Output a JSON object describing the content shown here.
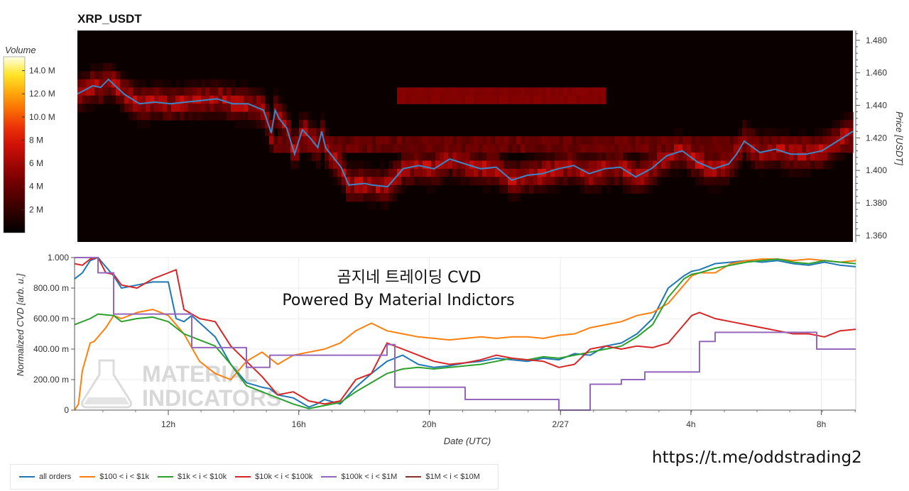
{
  "chart_data": [
    {
      "type": "heatmap",
      "title": "XRP_USDT",
      "ylabel": "Price [USDT]",
      "ylim": [
        1.356,
        1.486
      ],
      "y_ticks": [
        "1.480",
        "1.460",
        "1.440",
        "1.420",
        "1.400",
        "1.380",
        "1.360"
      ],
      "colorbar": {
        "label": "Volume",
        "ticks": [
          "14.0 M",
          "12.0 M",
          "10.0 M",
          "8 M",
          "6 M",
          "4 M",
          "2 M"
        ],
        "range": [
          0,
          15.2
        ]
      },
      "price_series": {
        "name": "price",
        "color": "#3d86c6",
        "x": [
          0,
          0.02,
          0.03,
          0.04,
          0.06,
          0.08,
          0.1,
          0.12,
          0.14,
          0.16,
          0.18,
          0.2,
          0.22,
          0.24,
          0.25,
          0.255,
          0.26,
          0.27,
          0.28,
          0.29,
          0.3,
          0.31,
          0.315,
          0.32,
          0.34,
          0.35,
          0.37,
          0.38,
          0.4,
          0.42,
          0.44,
          0.46,
          0.48,
          0.5,
          0.52,
          0.54,
          0.56,
          0.58,
          0.6,
          0.62,
          0.64,
          0.66,
          0.68,
          0.7,
          0.72,
          0.74,
          0.76,
          0.78,
          0.8,
          0.82,
          0.84,
          0.85,
          0.86,
          0.88,
          0.9,
          0.92,
          0.94,
          0.96,
          0.98,
          1.0
        ],
        "y": [
          1.447,
          1.452,
          1.451,
          1.456,
          1.447,
          1.441,
          1.442,
          1.441,
          1.442,
          1.443,
          1.444,
          1.441,
          1.441,
          1.437,
          1.423,
          1.437,
          1.432,
          1.426,
          1.41,
          1.425,
          1.42,
          1.414,
          1.424,
          1.414,
          1.402,
          1.391,
          1.392,
          1.391,
          1.39,
          1.401,
          1.403,
          1.401,
          1.407,
          1.404,
          1.401,
          1.402,
          1.394,
          1.397,
          1.398,
          1.401,
          1.403,
          1.398,
          1.401,
          1.402,
          1.396,
          1.401,
          1.409,
          1.412,
          1.405,
          1.401,
          1.404,
          1.41,
          1.418,
          1.411,
          1.413,
          1.41,
          1.41,
          1.412,
          1.418,
          1.424
        ]
      }
    },
    {
      "type": "line",
      "text_overlay": [
        "곰지네 트레이딩 CVD",
        "Powered By Material Indictors"
      ],
      "watermark": [
        "MATERIAL",
        "INDICATORS"
      ],
      "xlabel": "Date (UTC)",
      "ylabel": "Normalized CVD [arb. u.]",
      "ylim": [
        0,
        1.0
      ],
      "y_ticks": [
        "1.000",
        "800.00 m",
        "600.00 m",
        "400.00 m",
        "200.00 m",
        "0"
      ],
      "x_ticks": [
        "12h",
        "16h",
        "20h",
        "2/27",
        "4h",
        "8h"
      ],
      "x_tick_pos": [
        0.12,
        0.287,
        0.454,
        0.622,
        0.789,
        0.956
      ],
      "series": [
        {
          "name": "all orders",
          "color": "#1f77b4",
          "x": [
            0,
            0.01,
            0.02,
            0.03,
            0.05,
            0.06,
            0.08,
            0.1,
            0.12,
            0.13,
            0.14,
            0.15,
            0.18,
            0.2,
            0.22,
            0.24,
            0.25,
            0.26,
            0.28,
            0.3,
            0.31,
            0.32,
            0.34,
            0.36,
            0.38,
            0.4,
            0.42,
            0.43,
            0.44,
            0.46,
            0.48,
            0.5,
            0.52,
            0.54,
            0.56,
            0.58,
            0.6,
            0.62,
            0.64,
            0.66,
            0.68,
            0.7,
            0.72,
            0.74,
            0.76,
            0.78,
            0.79,
            0.8,
            0.82,
            0.84,
            0.86,
            0.88,
            0.9,
            0.92,
            0.94,
            0.96,
            0.98,
            1.0
          ],
          "y": [
            0.86,
            0.9,
            0.98,
            1.0,
            0.88,
            0.8,
            0.82,
            0.84,
            0.84,
            0.6,
            0.58,
            0.62,
            0.48,
            0.3,
            0.18,
            0.15,
            0.14,
            0.1,
            0.08,
            0.02,
            0.04,
            0.07,
            0.04,
            0.15,
            0.24,
            0.32,
            0.36,
            0.33,
            0.3,
            0.28,
            0.29,
            0.31,
            0.32,
            0.34,
            0.33,
            0.32,
            0.34,
            0.33,
            0.37,
            0.36,
            0.42,
            0.44,
            0.5,
            0.6,
            0.8,
            0.88,
            0.91,
            0.92,
            0.96,
            0.97,
            0.98,
            0.97,
            0.98,
            0.96,
            0.95,
            0.97,
            0.95,
            0.94
          ]
        },
        {
          "name": "$100 < i < $1k",
          "color": "#ff7f0e",
          "x": [
            0,
            0.005,
            0.01,
            0.02,
            0.025,
            0.04,
            0.05,
            0.06,
            0.08,
            0.1,
            0.12,
            0.14,
            0.16,
            0.18,
            0.2,
            0.22,
            0.24,
            0.25,
            0.26,
            0.28,
            0.3,
            0.32,
            0.34,
            0.36,
            0.38,
            0.4,
            0.42,
            0.44,
            0.46,
            0.48,
            0.5,
            0.52,
            0.54,
            0.56,
            0.58,
            0.6,
            0.62,
            0.64,
            0.66,
            0.68,
            0.7,
            0.72,
            0.74,
            0.76,
            0.78,
            0.79,
            0.8,
            0.82,
            0.84,
            0.86,
            0.88,
            0.9,
            0.92,
            0.94,
            0.96,
            0.98,
            1.0
          ],
          "y": [
            0.0,
            0.04,
            0.26,
            0.44,
            0.45,
            0.54,
            0.62,
            0.6,
            0.64,
            0.66,
            0.62,
            0.5,
            0.32,
            0.24,
            0.2,
            0.32,
            0.38,
            0.34,
            0.3,
            0.36,
            0.38,
            0.4,
            0.44,
            0.52,
            0.57,
            0.52,
            0.5,
            0.48,
            0.47,
            0.46,
            0.47,
            0.48,
            0.47,
            0.48,
            0.48,
            0.47,
            0.49,
            0.5,
            0.54,
            0.56,
            0.58,
            0.62,
            0.64,
            0.7,
            0.82,
            0.88,
            0.9,
            0.9,
            0.96,
            0.98,
            0.99,
            0.99,
            0.98,
            0.99,
            0.98,
            0.97,
            0.98
          ]
        },
        {
          "name": "$1k < i < $10k",
          "color": "#2ca02c",
          "x": [
            0,
            0.02,
            0.03,
            0.05,
            0.06,
            0.08,
            0.1,
            0.12,
            0.14,
            0.16,
            0.18,
            0.2,
            0.22,
            0.24,
            0.25,
            0.26,
            0.28,
            0.3,
            0.32,
            0.34,
            0.36,
            0.38,
            0.4,
            0.42,
            0.44,
            0.46,
            0.48,
            0.5,
            0.52,
            0.54,
            0.56,
            0.58,
            0.6,
            0.62,
            0.64,
            0.66,
            0.68,
            0.7,
            0.72,
            0.74,
            0.76,
            0.78,
            0.79,
            0.8,
            0.82,
            0.84,
            0.86,
            0.88,
            0.9,
            0.92,
            0.94,
            0.96,
            0.98,
            1.0
          ],
          "y": [
            0.56,
            0.6,
            0.63,
            0.62,
            0.58,
            0.6,
            0.61,
            0.58,
            0.5,
            0.46,
            0.42,
            0.3,
            0.16,
            0.12,
            0.1,
            0.08,
            0.04,
            0.01,
            0.03,
            0.05,
            0.12,
            0.18,
            0.24,
            0.27,
            0.28,
            0.27,
            0.28,
            0.29,
            0.3,
            0.32,
            0.34,
            0.33,
            0.35,
            0.34,
            0.36,
            0.38,
            0.4,
            0.42,
            0.48,
            0.56,
            0.74,
            0.86,
            0.89,
            0.9,
            0.93,
            0.95,
            0.97,
            0.98,
            0.99,
            0.97,
            0.96,
            0.98,
            0.97,
            0.96
          ]
        },
        {
          "name": "$10k < i < $100k",
          "color": "#d62728",
          "x": [
            0,
            0.01,
            0.02,
            0.03,
            0.04,
            0.05,
            0.06,
            0.08,
            0.1,
            0.12,
            0.13,
            0.14,
            0.16,
            0.18,
            0.2,
            0.22,
            0.24,
            0.25,
            0.26,
            0.28,
            0.3,
            0.32,
            0.34,
            0.36,
            0.38,
            0.4,
            0.42,
            0.44,
            0.46,
            0.48,
            0.5,
            0.52,
            0.54,
            0.56,
            0.58,
            0.6,
            0.62,
            0.64,
            0.66,
            0.68,
            0.7,
            0.72,
            0.74,
            0.76,
            0.78,
            0.79,
            0.8,
            0.82,
            0.84,
            0.86,
            0.88,
            0.9,
            0.92,
            0.94,
            0.96,
            0.98,
            1.0
          ],
          "y": [
            0.96,
            0.95,
            0.99,
            1.0,
            0.9,
            0.89,
            0.82,
            0.8,
            0.86,
            0.9,
            0.92,
            0.66,
            0.6,
            0.58,
            0.42,
            0.32,
            0.22,
            0.16,
            0.1,
            0.12,
            0.06,
            0.04,
            0.06,
            0.2,
            0.24,
            0.44,
            0.4,
            0.36,
            0.32,
            0.3,
            0.31,
            0.33,
            0.36,
            0.34,
            0.33,
            0.32,
            0.28,
            0.3,
            0.4,
            0.42,
            0.4,
            0.42,
            0.41,
            0.44,
            0.56,
            0.62,
            0.64,
            0.6,
            0.58,
            0.56,
            0.54,
            0.52,
            0.5,
            0.5,
            0.48,
            0.52,
            0.53
          ]
        },
        {
          "name": "$100k < i < $1M",
          "color": "#9467bd",
          "step": true,
          "x": [
            0,
            0.03,
            0.05,
            0.14,
            0.15,
            0.21,
            0.22,
            0.24,
            0.25,
            0.265,
            0.39,
            0.4,
            0.41,
            0.42,
            0.49,
            0.5,
            0.54,
            0.56,
            0.61,
            0.62,
            0.65,
            0.66,
            0.7,
            0.72,
            0.73,
            0.79,
            0.8,
            0.82,
            0.94,
            0.95,
            1.0
          ],
          "y": [
            1.0,
            0.9,
            0.63,
            0.63,
            0.41,
            0.41,
            0.28,
            0.28,
            0.36,
            0.36,
            0.36,
            0.43,
            0.15,
            0.15,
            0.15,
            0.07,
            0.07,
            0.07,
            0.07,
            0.0,
            0.0,
            0.17,
            0.2,
            0.2,
            0.25,
            0.25,
            0.45,
            0.51,
            0.51,
            0.4,
            0.4
          ]
        },
        {
          "name": "$1M < i < $10M",
          "color": "#8c2d2d",
          "x": [],
          "y": []
        }
      ]
    }
  ],
  "footer": {
    "url": "https://t.me/oddstrading2"
  }
}
